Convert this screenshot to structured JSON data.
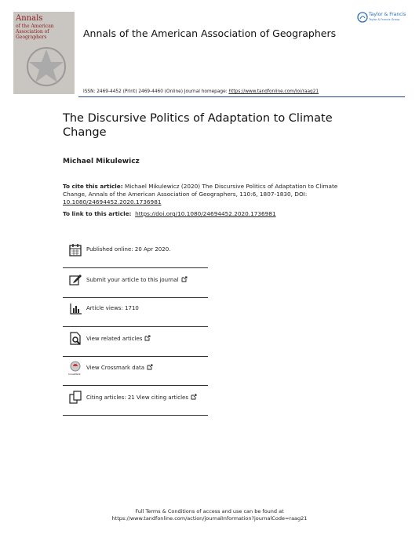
{
  "cover": {
    "title_line1": "Annals",
    "title_line2": "of the American",
    "title_line3": "Association of Geographers"
  },
  "publisher": {
    "name": "Taylor & Francis",
    "group": "Taylor & Francis Group"
  },
  "journal_title": "Annals of the American Association of Geographers",
  "issn": {
    "text": "ISSN: 2469-4452 (Print) 2469-4460 (Online) Journal homepage:",
    "url": "https://www.tandfonline.com/loi/raag21"
  },
  "article": {
    "title": "The Discursive Politics of Adaptation to Climate Change",
    "author": "Michael Mikulewicz"
  },
  "cite": {
    "label": "To cite this article:",
    "text": "Michael Mikulewicz (2020) The Discursive Politics of Adaptation to Climate Change, Annals of the American Association of Geographers, 110:6, 1807-1830, DOI:",
    "doi": "10.1080/24694452.2020.1736981"
  },
  "link": {
    "label": "To link to this article:",
    "url": "https://doi.org/10.1080/24694452.2020.1736981"
  },
  "items": [
    "Published online: 20 Apr 2020.",
    "Submit your article to this journal",
    "Article views: 1710",
    "View related articles",
    "View Crossmark data",
    "Citing articles: 21 View citing articles"
  ],
  "crossmark_label": "CrossMark",
  "footer": {
    "line1": "Full Terms & Conditions of access and use can be found at",
    "url": "https://www.tandfonline.com/action/journalInformation?journalCode=raag21"
  }
}
